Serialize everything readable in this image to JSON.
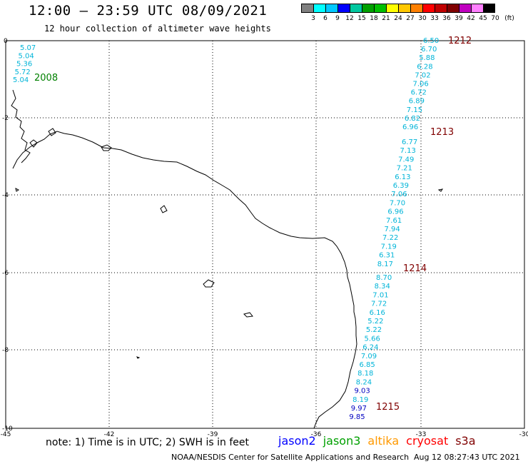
{
  "header": {
    "title": "12:00 – 23:59 UTC 08/09/2021",
    "subtitle": "12 hour collection of altimeter wave heights"
  },
  "legend": {
    "unit": "(ft)",
    "labels": [
      "3",
      "6",
      "9",
      "12",
      "15",
      "18",
      "21",
      "24",
      "27",
      "30",
      "33",
      "36",
      "39",
      "42",
      "45",
      "70"
    ],
    "colors": [
      "#808080",
      "#00ffff",
      "#00c8ff",
      "#0000ff",
      "#00c8a0",
      "#00a000",
      "#00c000",
      "#ffff00",
      "#ffc800",
      "#ff8000",
      "#ff0000",
      "#c00000",
      "#800000",
      "#c000c0",
      "#ff80ff",
      "#000000"
    ]
  },
  "axes": {
    "x_ticks": [
      "-45",
      "-42",
      "-39",
      "-36",
      "-33",
      "-30"
    ],
    "y_ticks": [
      "0",
      "-2",
      "-4",
      "-6",
      "-8",
      "-10"
    ]
  },
  "tracks": {
    "track_2008": {
      "label": "2008",
      "label_color": "#008000",
      "values": [
        "5.07",
        "5.04",
        "5.36",
        "5.72",
        "5.04"
      ]
    },
    "track_1212": {
      "label": "1212",
      "label_color": "#800000",
      "values": [
        "6.50",
        "6.70",
        "5.88",
        "6.28",
        "7.02",
        "7.06",
        "6.72",
        "6.89",
        "7.15",
        "6.82",
        "6.96"
      ]
    },
    "track_1213": {
      "label": "1213",
      "label_color": "#800000",
      "values": [
        "6.77",
        "7.13",
        "7.49",
        "7.21",
        "6.13",
        "6.39",
        "7.06",
        "7.70",
        "6.96",
        "7.61",
        "7.94",
        "7.22",
        "7.19",
        "6.31",
        "8.17"
      ]
    },
    "track_1214": {
      "label": "1214",
      "label_color": "#800000",
      "values": [
        "8.70",
        "8.34",
        "7.01",
        "7.72",
        "6.16",
        "5.22",
        "5.22",
        "5.66",
        "6.24",
        "7.09",
        "6.85",
        "8.18",
        "8.24",
        "9.03",
        "8.19",
        "9.97",
        "9.85"
      ]
    },
    "track_1215": {
      "label": "1215",
      "label_color": "#800000"
    }
  },
  "footer": {
    "note": "note: 1) Time is in UTC; 2) SWH is in feet",
    "satellites": [
      {
        "name": "jason2",
        "color": "#0000ff"
      },
      {
        "name": "jason3",
        "color": "#00a000"
      },
      {
        "name": "altika",
        "color": "#ff9900"
      },
      {
        "name": "cryosat",
        "color": "#ff0000"
      },
      {
        "name": "s3a",
        "color": "#800000"
      }
    ],
    "credit": "NOAA/NESDIS Center for Satellite Applications and Research",
    "timestamp": "Aug 12 08:27:43 UTC 2021"
  }
}
